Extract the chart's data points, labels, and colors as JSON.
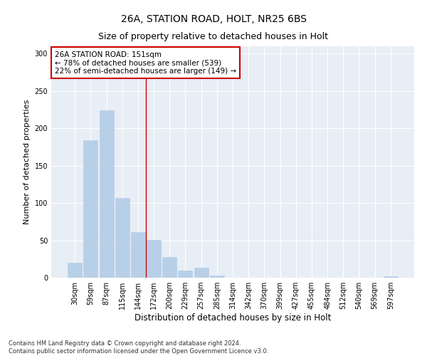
{
  "title1": "26A, STATION ROAD, HOLT, NR25 6BS",
  "title2": "Size of property relative to detached houses in Holt",
  "xlabel": "Distribution of detached houses by size in Holt",
  "ylabel": "Number of detached properties",
  "bar_labels": [
    "30sqm",
    "59sqm",
    "87sqm",
    "115sqm",
    "144sqm",
    "172sqm",
    "200sqm",
    "229sqm",
    "257sqm",
    "285sqm",
    "314sqm",
    "342sqm",
    "370sqm",
    "399sqm",
    "427sqm",
    "455sqm",
    "484sqm",
    "512sqm",
    "540sqm",
    "569sqm",
    "597sqm"
  ],
  "bar_values": [
    20,
    184,
    224,
    107,
    61,
    51,
    28,
    10,
    13,
    3,
    0,
    0,
    0,
    0,
    0,
    0,
    0,
    0,
    0,
    0,
    2
  ],
  "bar_color": "#b8cfe8",
  "bar_edgecolor": "#b8cfe8",
  "vline_x": 4.5,
  "vline_color": "#cc0000",
  "annotation_line1": "26A STATION ROAD: 151sqm",
  "annotation_line2": "← 78% of detached houses are smaller (539)",
  "annotation_line3": "22% of semi-detached houses are larger (149) →",
  "annotation_box_color": "#ffffff",
  "annotation_box_edgecolor": "#cc0000",
  "ylim": [
    0,
    310
  ],
  "yticks": [
    0,
    50,
    100,
    150,
    200,
    250,
    300
  ],
  "bg_color": "#e8eef5",
  "footer_line1": "Contains HM Land Registry data © Crown copyright and database right 2024.",
  "footer_line2": "Contains public sector information licensed under the Open Government Licence v3.0.",
  "title1_fontsize": 10,
  "title2_fontsize": 9,
  "xlabel_fontsize": 8.5,
  "ylabel_fontsize": 8,
  "tick_fontsize": 7,
  "annotation_fontsize": 7.5,
  "footer_fontsize": 6
}
